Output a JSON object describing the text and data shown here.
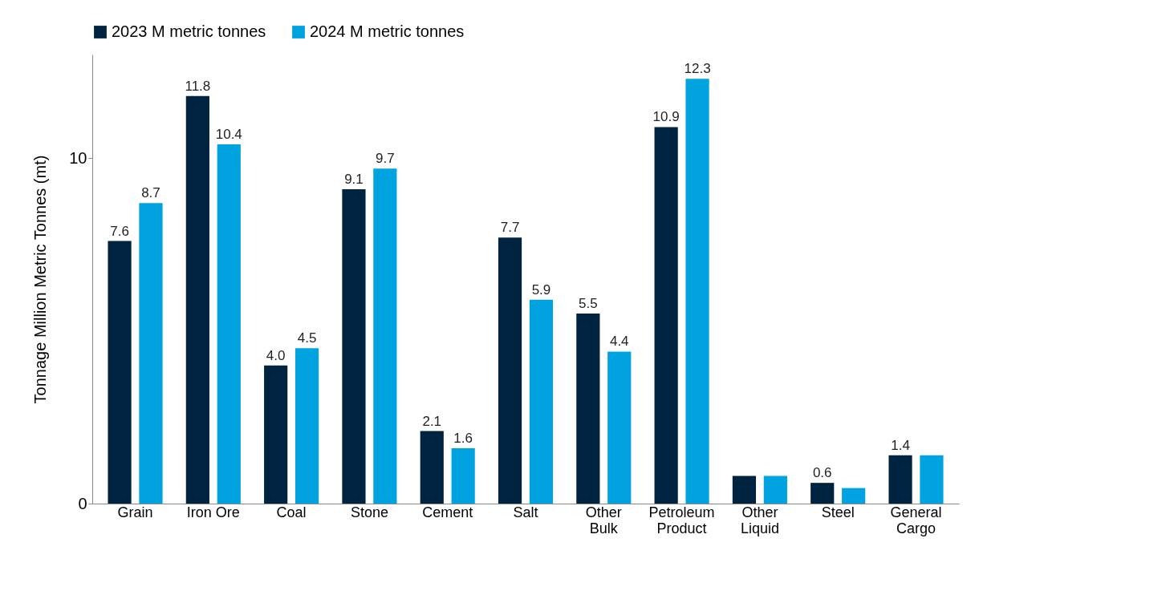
{
  "chart_data": {
    "type": "bar",
    "ylabel": "Tonnage Million Metric Tonnes (mt)",
    "categories": [
      "Grain",
      "Iron Ore",
      "Coal",
      "Stone",
      "Cement",
      "Salt",
      "Other\nBulk",
      "Petroleum\nProduct",
      "Other\nLiquid",
      "Steel",
      "General\nCargo"
    ],
    "series": [
      {
        "name": "2023 M metric tonnes",
        "color": "#00233f",
        "values": [
          7.6,
          11.8,
          4.0,
          9.1,
          2.1,
          7.7,
          5.5,
          10.9,
          0.8,
          0.6,
          1.4
        ],
        "value_labels": [
          "7.6",
          "11.8",
          "4.0",
          "9.1",
          "2.1",
          "7.7",
          "5.5",
          "10.9",
          null,
          "0.6",
          "1.4"
        ]
      },
      {
        "name": "2024 M metric tonnes",
        "color": "#00a3e0",
        "values": [
          8.7,
          10.4,
          4.5,
          9.7,
          1.6,
          5.9,
          4.4,
          12.3,
          0.8,
          0.45,
          1.4
        ],
        "value_labels": [
          "8.7",
          "10.4",
          "4.5",
          "9.7",
          "1.6",
          "5.9",
          "4.4",
          "12.3",
          null,
          null,
          null
        ]
      }
    ],
    "ylim": [
      0,
      13
    ],
    "yticks": [
      0,
      10
    ],
    "grid": false,
    "legend": "top"
  }
}
